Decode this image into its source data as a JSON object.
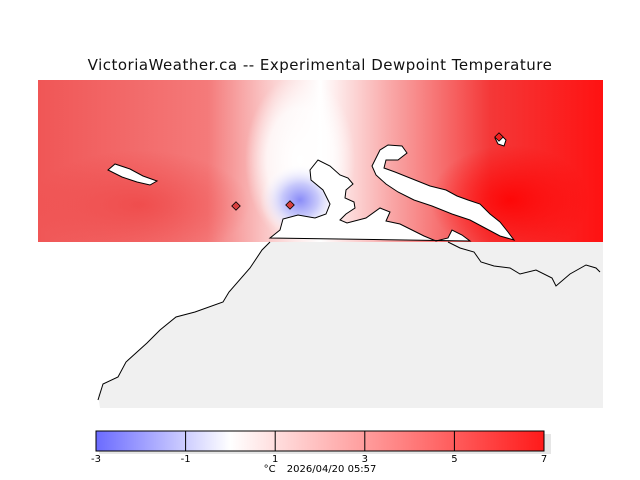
{
  "title": "VictoriaWeather.ca -- Experimental Dewpoint Temperature",
  "legend": {
    "unit": "°C",
    "timestamp": "2026/04/20 05:57",
    "ticks": [
      -3,
      -1,
      1,
      3,
      5,
      7
    ],
    "min": -3,
    "max": 7
  },
  "colors": {
    "cold": "#6b6bff",
    "neutral": "#ffffff",
    "warm": "#ff1a1a",
    "land": "#f0f0f0",
    "coast": "#000000"
  },
  "stations": [
    {
      "id": "station-west",
      "value": 5.2
    },
    {
      "id": "station-central",
      "value": -0.8
    },
    {
      "id": "station-east",
      "value": 6.6
    }
  ]
}
